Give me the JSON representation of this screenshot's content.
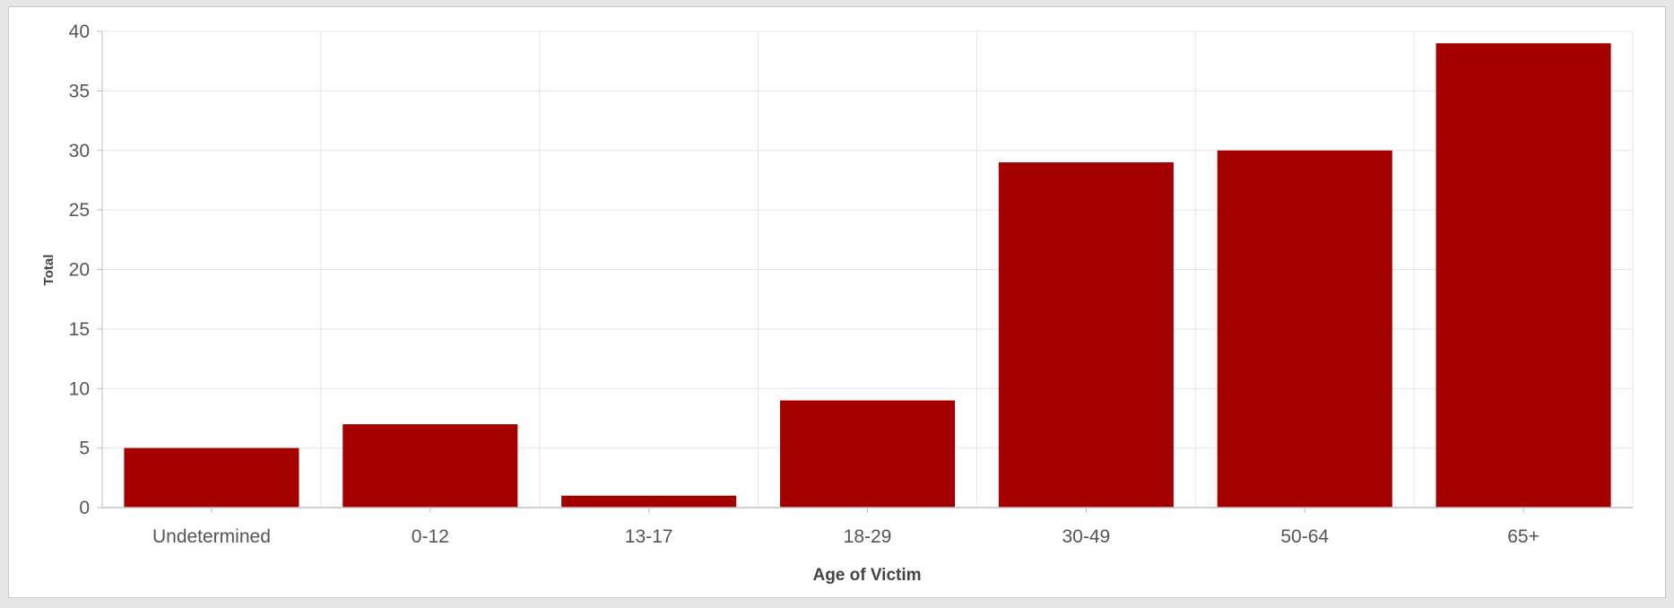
{
  "chart_data": {
    "type": "bar",
    "categories": [
      "Undetermined",
      "0-12",
      "13-17",
      "18-29",
      "30-49",
      "50-64",
      "65+"
    ],
    "values": [
      5,
      7,
      1,
      9,
      29,
      30,
      39
    ],
    "xlabel": "Age of Victim",
    "ylabel": "Total",
    "ylim": [
      0,
      40
    ],
    "yticks": [
      0,
      5,
      10,
      15,
      20,
      25,
      30,
      35,
      40
    ],
    "grid": true,
    "bar_color": "#a50000",
    "grid_color": "#e5e5e5",
    "axis_color": "#bfbfbf"
  }
}
